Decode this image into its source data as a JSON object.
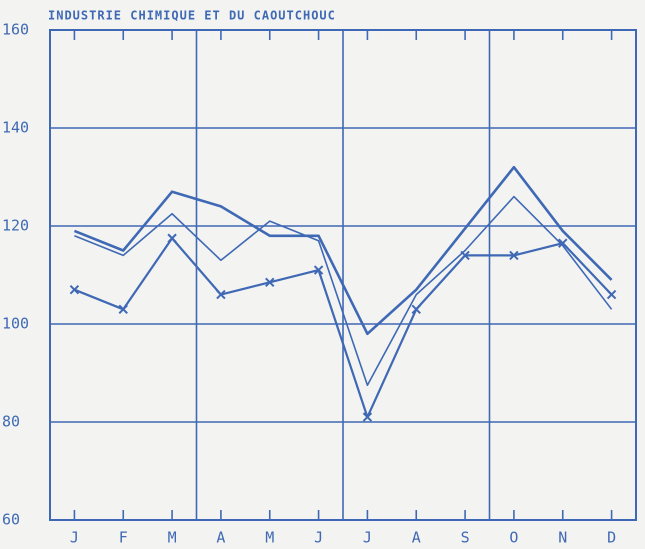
{
  "chart_data": {
    "type": "line",
    "title": "INDUSTRIE CHIMIQUE ET DU CAOUTCHOUC",
    "categories": [
      "J",
      "F",
      "M",
      "A",
      "M",
      "J",
      "J",
      "A",
      "S",
      "O",
      "N",
      "D"
    ],
    "series": [
      {
        "color": "#3f69b5",
        "width": 2.6,
        "marker": false,
        "values": [
          119,
          115,
          127,
          124,
          118,
          118,
          98,
          107,
          119.5,
          132,
          119,
          109
        ]
      },
      {
        "color": "#3f69b5",
        "width": 1.6,
        "marker": false,
        "values": [
          118,
          114,
          122.5,
          113,
          121,
          117,
          87.5,
          106,
          115,
          126,
          116,
          103
        ]
      },
      {
        "color": "#3f69b5",
        "width": 2.2,
        "marker": true,
        "values": [
          107,
          103,
          117.5,
          106,
          108.5,
          111,
          81,
          103,
          114,
          114,
          116.5,
          106
        ]
      }
    ],
    "ylim": [
      60,
      160
    ],
    "yticks": [
      60,
      80,
      100,
      120,
      140,
      160
    ],
    "grid": true
  }
}
